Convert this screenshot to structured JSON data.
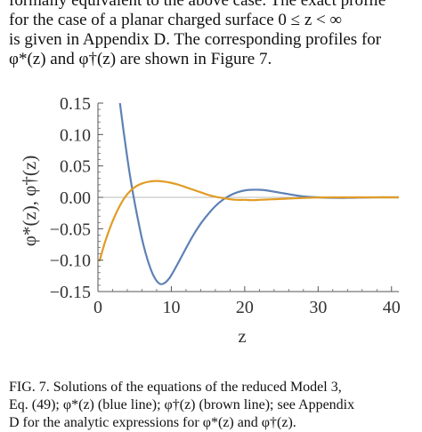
{
  "body_text": {
    "lines": [
      "formally equivalent to the above case. The exact profile",
      "for the case of a planar charged surface 0 ≤ z < ∞",
      "is given in Appendix D. The corresponding profiles for",
      "φ*(z) and φ†(z) are shown in Figure 7."
    ]
  },
  "caption": {
    "lines": [
      "FIG. 7.  Solutions of the equations of the reduced Model 3,",
      "Eq. (49); φ*(z) (blue line); φ†(z) (brown line); see Appendix",
      "D for the analytic expressions for φ*(z) and φ†(z)."
    ]
  },
  "chart_data": {
    "type": "line",
    "xlabel": "z",
    "ylabel": "φ*(z), φ†(z)",
    "xlim": [
      0,
      41
    ],
    "ylim": [
      -0.15,
      0.15
    ],
    "xticks": [
      0,
      10,
      20,
      30,
      40
    ],
    "xtick_labels": [
      "0",
      "10",
      "20",
      "30",
      "40"
    ],
    "yticks": [
      0.15,
      0.1,
      0.05,
      0.0,
      -0.05,
      -0.1,
      -0.15
    ],
    "ytick_labels": [
      "0.15",
      "0.10",
      "0.05",
      "0.00",
      "−0.05",
      "−0.10",
      "−0.15"
    ],
    "grid": false,
    "zero_line": true,
    "colors": {
      "blue": "#5e81b5",
      "orange": "#e19c24",
      "axis": "#555555",
      "zero": "#bbbbbb"
    },
    "series": [
      {
        "color": "#5e81b5",
        "x": [
          3,
          3.5,
          4,
          4.5,
          5,
          5.5,
          6,
          6.5,
          7,
          7.5,
          8,
          8.5,
          9,
          9.5,
          10,
          11,
          12,
          13,
          14,
          15,
          16,
          17,
          18,
          19,
          20,
          21,
          22,
          23,
          24,
          25,
          26,
          27,
          28,
          29,
          30,
          31,
          32,
          33,
          34,
          35,
          36,
          37,
          38,
          39,
          40,
          41
        ],
        "y": [
          0.15,
          0.105,
          0.063,
          0.025,
          -0.008,
          -0.038,
          -0.066,
          -0.089,
          -0.108,
          -0.123,
          -0.133,
          -0.138,
          -0.137,
          -0.132,
          -0.124,
          -0.103,
          -0.081,
          -0.06,
          -0.042,
          -0.027,
          -0.014,
          -0.004,
          0.003,
          0.008,
          0.011,
          0.012,
          0.012,
          0.011,
          0.009,
          0.007,
          0.005,
          0.003,
          0.0015,
          0.0005,
          0.0,
          -0.0005,
          -0.0008,
          -0.0009,
          -0.0008,
          -0.0006,
          -0.0004,
          -0.0002,
          -0.0001,
          0.0,
          0.0,
          0.0
        ]
      },
      {
        "color": "#e19c24",
        "x": [
          0.2,
          1,
          2,
          3,
          4,
          5,
          6,
          7,
          8,
          9,
          10,
          11,
          12,
          13,
          14,
          15,
          16,
          17,
          18,
          19,
          20,
          21,
          22,
          23,
          24,
          25,
          26,
          27,
          28,
          29,
          30,
          31,
          32,
          34,
          36,
          38,
          41
        ],
        "y": [
          -0.102,
          -0.07,
          -0.038,
          -0.013,
          0.005,
          0.016,
          0.022,
          0.025,
          0.026,
          0.025,
          0.023,
          0.02,
          0.016,
          0.012,
          0.008,
          0.004,
          0.001,
          -0.001,
          -0.003,
          -0.004,
          -0.004,
          -0.0045,
          -0.004,
          -0.0035,
          -0.003,
          -0.0025,
          -0.002,
          -0.0015,
          -0.001,
          -0.0006,
          -0.0003,
          -0.0001,
          0.0,
          0.0,
          0.0,
          0.0,
          0.0
        ]
      }
    ]
  }
}
